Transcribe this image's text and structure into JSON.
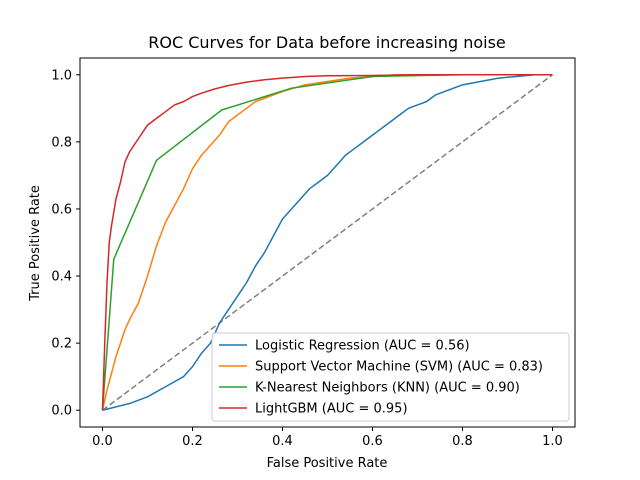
{
  "chart_data": {
    "type": "line",
    "title": "ROC Curves for Data before increasing noise",
    "xlabel": "False Positive Rate",
    "ylabel": "True Positive Rate",
    "xlim": [
      -0.05,
      1.05
    ],
    "ylim": [
      -0.05,
      1.05
    ],
    "xticks": [
      0.0,
      0.2,
      0.4,
      0.6,
      0.8,
      1.0
    ],
    "yticks": [
      0.0,
      0.2,
      0.4,
      0.6,
      0.8,
      1.0
    ],
    "xtick_labels": [
      "0.0",
      "0.2",
      "0.4",
      "0.6",
      "0.8",
      "1.0"
    ],
    "ytick_labels": [
      "0.0",
      "0.2",
      "0.4",
      "0.6",
      "0.8",
      "1.0"
    ],
    "grid": false,
    "legend_placement": "lower-right",
    "series": [
      {
        "name": "Logistic Regression (AUC = 0.56)",
        "color": "#1f77b4",
        "x": [
          0.0,
          0.03,
          0.06,
          0.1,
          0.14,
          0.18,
          0.2,
          0.22,
          0.24,
          0.26,
          0.28,
          0.3,
          0.32,
          0.34,
          0.36,
          0.38,
          0.4,
          0.42,
          0.44,
          0.46,
          0.48,
          0.5,
          0.52,
          0.54,
          0.56,
          0.58,
          0.6,
          0.62,
          0.64,
          0.66,
          0.68,
          0.7,
          0.72,
          0.74,
          0.76,
          0.78,
          0.8,
          0.84,
          0.88,
          0.92,
          0.96,
          1.0
        ],
        "y": [
          0.0,
          0.01,
          0.02,
          0.04,
          0.07,
          0.1,
          0.13,
          0.17,
          0.2,
          0.26,
          0.3,
          0.34,
          0.38,
          0.43,
          0.47,
          0.52,
          0.57,
          0.6,
          0.63,
          0.66,
          0.68,
          0.7,
          0.73,
          0.76,
          0.78,
          0.8,
          0.82,
          0.84,
          0.86,
          0.88,
          0.9,
          0.91,
          0.92,
          0.94,
          0.95,
          0.96,
          0.97,
          0.98,
          0.99,
          0.995,
          1.0,
          1.0
        ]
      },
      {
        "name": "Support Vector Machine (SVM) (AUC = 0.83)",
        "color": "#ff7f0e",
        "x": [
          0.0,
          0.01,
          0.02,
          0.03,
          0.04,
          0.05,
          0.06,
          0.08,
          0.1,
          0.12,
          0.14,
          0.16,
          0.18,
          0.2,
          0.22,
          0.24,
          0.26,
          0.28,
          0.3,
          0.32,
          0.34,
          0.36,
          0.4,
          0.45,
          0.5,
          0.55,
          0.6,
          0.65,
          0.7,
          0.8,
          0.9,
          1.0
        ],
        "y": [
          0.0,
          0.06,
          0.11,
          0.16,
          0.2,
          0.24,
          0.27,
          0.32,
          0.4,
          0.49,
          0.56,
          0.61,
          0.66,
          0.72,
          0.76,
          0.79,
          0.82,
          0.86,
          0.88,
          0.9,
          0.92,
          0.93,
          0.95,
          0.97,
          0.98,
          0.99,
          0.995,
          1.0,
          1.0,
          1.0,
          1.0,
          1.0
        ]
      },
      {
        "name": "K-Nearest Neighbors (KNN) (AUC = 0.90)",
        "color": "#2ca02c",
        "x": [
          0.0,
          0.025,
          0.12,
          0.265,
          0.42,
          0.6,
          0.8,
          1.0
        ],
        "y": [
          0.0,
          0.45,
          0.745,
          0.895,
          0.96,
          0.995,
          1.0,
          1.0
        ],
        "step": false
      },
      {
        "name": "LightGBM (AUC = 0.95)",
        "color": "#d62728",
        "x": [
          0.0,
          0.005,
          0.01,
          0.015,
          0.02,
          0.03,
          0.04,
          0.05,
          0.06,
          0.08,
          0.1,
          0.12,
          0.14,
          0.16,
          0.18,
          0.2,
          0.22,
          0.25,
          0.28,
          0.32,
          0.36,
          0.4,
          0.45,
          0.5,
          0.6,
          0.7,
          0.8,
          0.9,
          1.0
        ],
        "y": [
          0.0,
          0.2,
          0.38,
          0.5,
          0.55,
          0.63,
          0.68,
          0.74,
          0.77,
          0.81,
          0.85,
          0.87,
          0.89,
          0.91,
          0.92,
          0.935,
          0.945,
          0.958,
          0.968,
          0.978,
          0.985,
          0.99,
          0.995,
          0.997,
          0.998,
          1.0,
          1.0,
          1.0,
          1.0
        ]
      }
    ],
    "reference_line": {
      "x": [
        0.0,
        1.0
      ],
      "y": [
        0.0,
        1.0
      ],
      "color": "#808080",
      "dash": "dashed"
    }
  }
}
